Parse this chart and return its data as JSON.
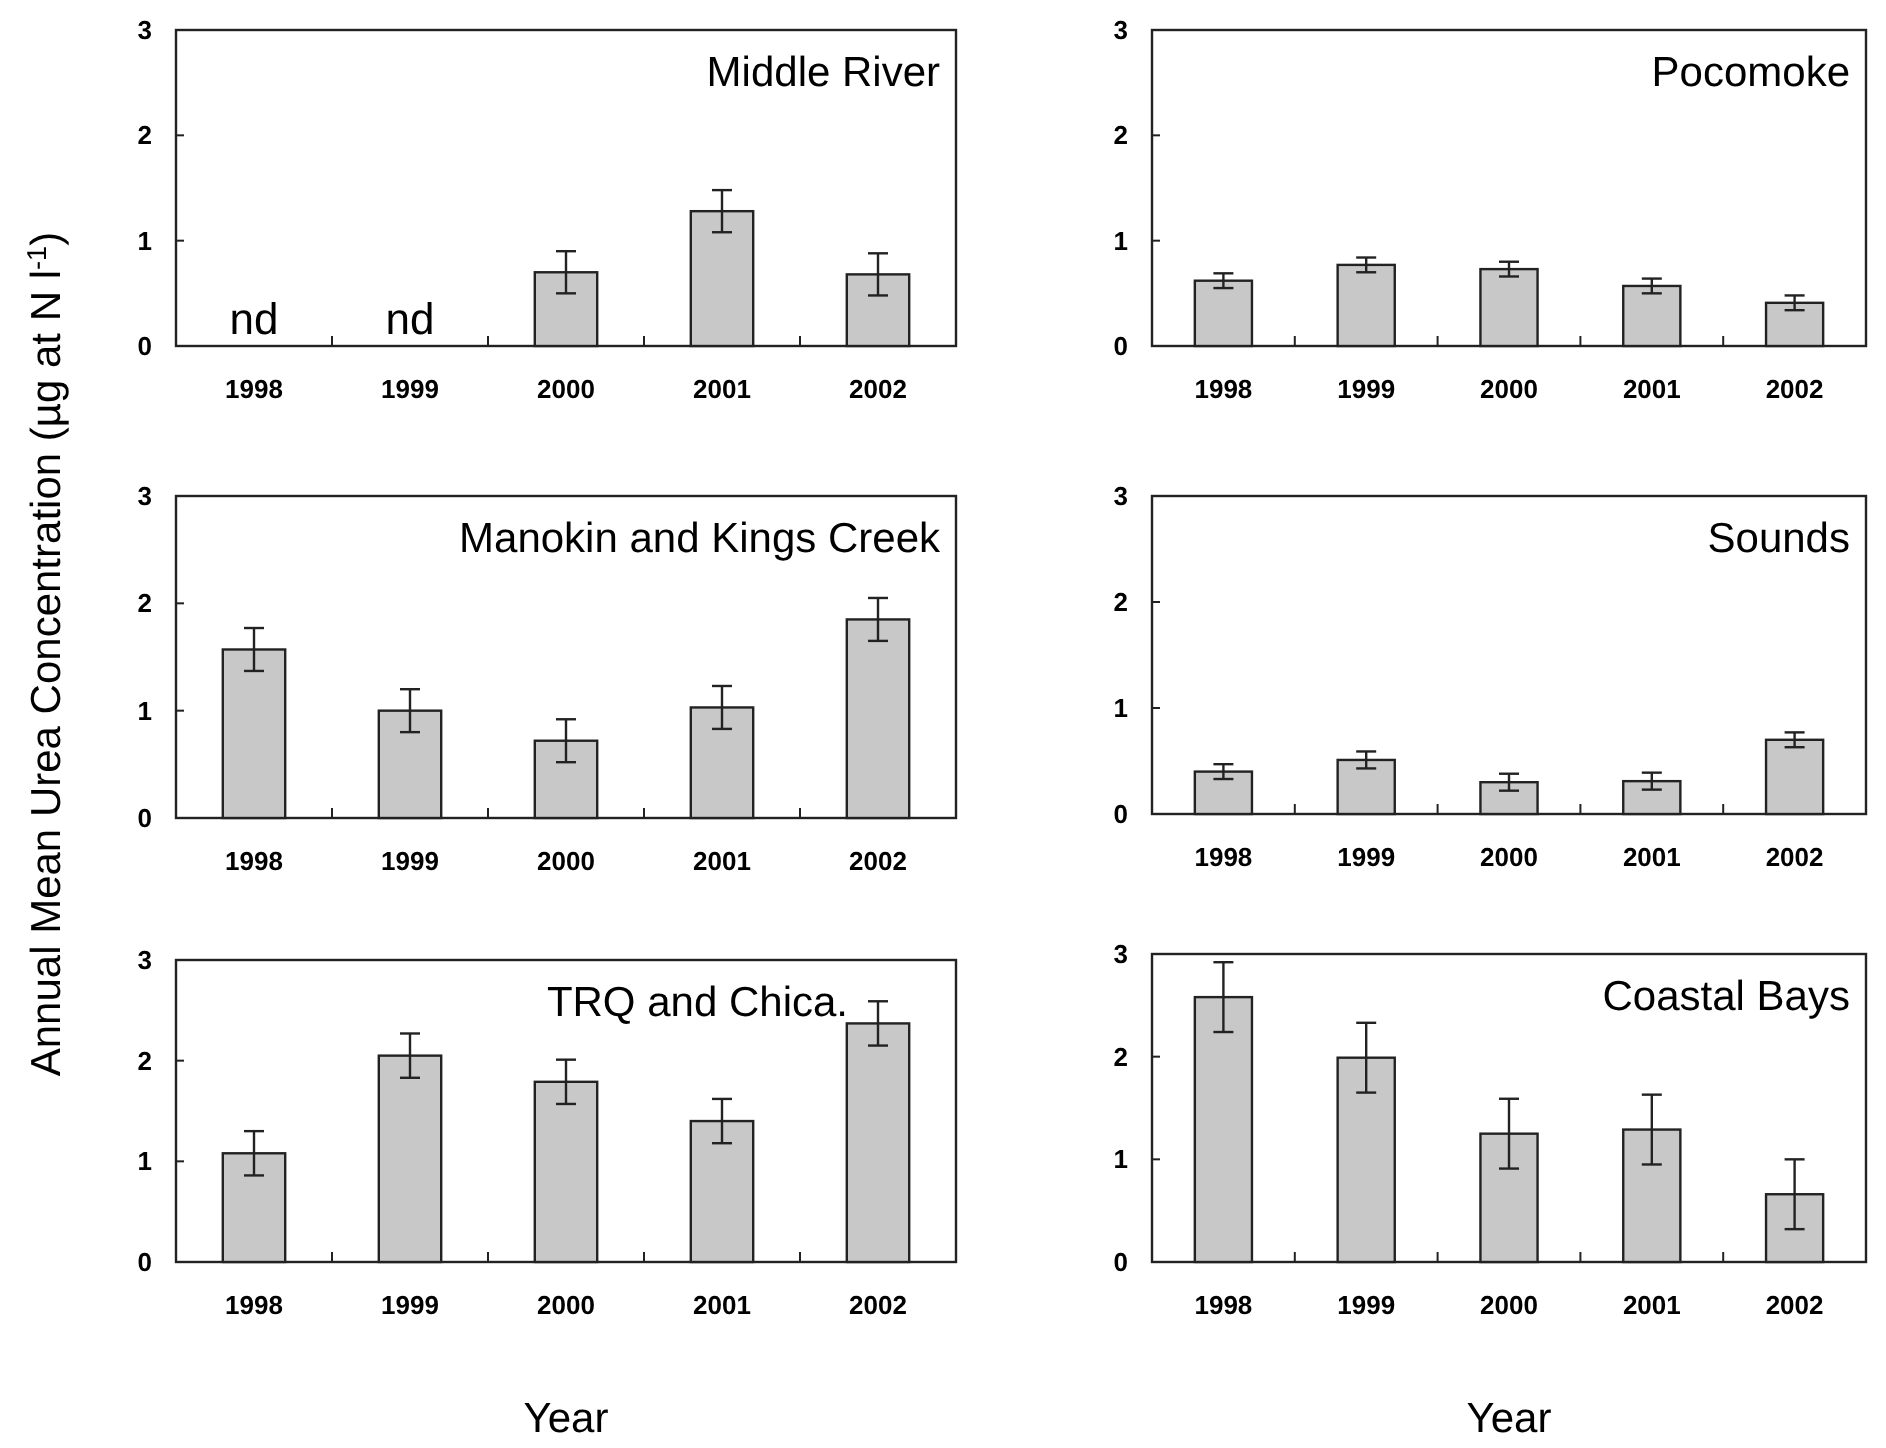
{
  "chart_data": [
    {
      "type": "bar",
      "title": "Middle River",
      "categories": [
        "1998",
        "1999",
        "2000",
        "2001",
        "2002"
      ],
      "values": [
        null,
        null,
        0.7,
        1.28,
        0.68
      ],
      "errors": [
        null,
        null,
        0.2,
        0.2,
        0.2
      ],
      "color": "#c8c8c8",
      "ylim": [
        0,
        3
      ],
      "yticks": [
        0,
        1,
        2,
        3
      ],
      "grid": false,
      "annotations": [
        "nd",
        "nd"
      ]
    },
    {
      "type": "bar",
      "title": "Pocomoke",
      "categories": [
        "1998",
        "1999",
        "2000",
        "2001",
        "2002"
      ],
      "values": [
        0.62,
        0.77,
        0.73,
        0.57,
        0.41
      ],
      "errors": [
        0.07,
        0.07,
        0.07,
        0.07,
        0.07
      ],
      "color": "#c8c8c8",
      "ylim": [
        0,
        3
      ],
      "yticks": [
        0,
        1,
        2,
        3
      ],
      "grid": false
    },
    {
      "type": "bar",
      "title": "Manokin and Kings Creek",
      "ylabel": "Annual Mean Urea Concentration (µg at N l$^{-1}$)",
      "categories": [
        "1998",
        "1999",
        "2000",
        "2001",
        "2002"
      ],
      "values": [
        1.57,
        1.0,
        0.72,
        1.03,
        1.85
      ],
      "errors": [
        0.2,
        0.2,
        0.2,
        0.2,
        0.2
      ],
      "color": "#c8c8c8",
      "ylim": [
        0,
        3
      ],
      "yticks": [
        0,
        1,
        2,
        3
      ],
      "grid": false
    },
    {
      "type": "bar",
      "title": "Sounds",
      "categories": [
        "1998",
        "1999",
        "2000",
        "2001",
        "2002"
      ],
      "values": [
        0.4,
        0.51,
        0.3,
        0.31,
        0.7
      ],
      "errors": [
        0.07,
        0.08,
        0.08,
        0.08,
        0.07
      ],
      "color": "#c8c8c8",
      "ylim": [
        0,
        3
      ],
      "yticks": [
        0,
        1,
        2,
        3
      ],
      "grid": false
    },
    {
      "type": "bar",
      "title": "TRQ and Chica.",
      "xlabel": "Year",
      "categories": [
        "1998",
        "1999",
        "2000",
        "2001",
        "2002"
      ],
      "values": [
        1.08,
        2.05,
        1.79,
        1.4,
        2.37
      ],
      "errors": [
        0.22,
        0.22,
        0.22,
        0.22,
        0.22
      ],
      "color": "#c8c8c8",
      "ylim": [
        0,
        3
      ],
      "yticks": [
        0,
        1,
        2,
        3
      ],
      "grid": false
    },
    {
      "type": "bar",
      "title": "Coastal Bays",
      "xlabel": "Year",
      "categories": [
        "1998",
        "1999",
        "2000",
        "2001",
        "2002"
      ],
      "values": [
        2.58,
        1.99,
        1.25,
        1.29,
        0.66
      ],
      "errors": [
        0.34,
        0.34,
        0.34,
        0.34,
        0.34
      ],
      "color": "#c8c8c8",
      "ylim": [
        0,
        3
      ],
      "yticks": [
        0,
        1,
        2,
        3
      ],
      "grid": false
    }
  ]
}
